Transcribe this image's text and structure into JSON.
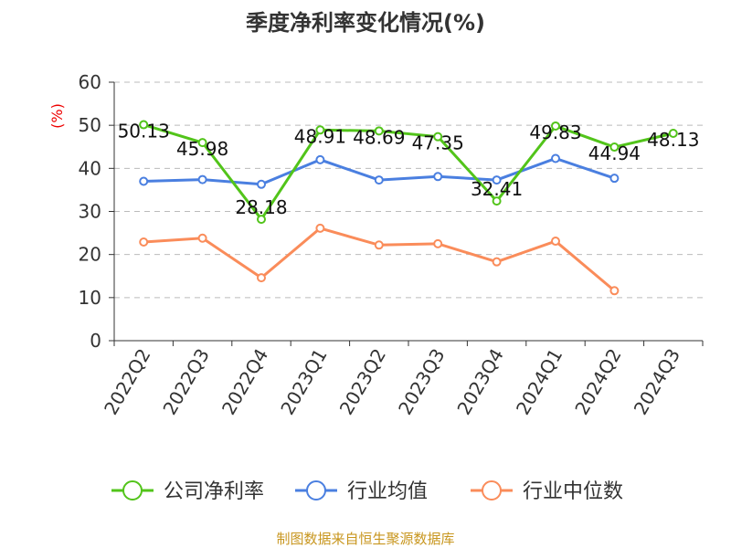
{
  "chart_data": {
    "type": "line",
    "title": "季度净利率变化情况(%)",
    "ylabel": "(%)",
    "xlabel": "",
    "ylim": [
      0,
      60
    ],
    "yticks": [
      0,
      10,
      20,
      30,
      40,
      50,
      60
    ],
    "grid": true,
    "legend": "bottom",
    "categories": [
      "2022Q2",
      "2022Q3",
      "2022Q4",
      "2023Q1",
      "2023Q2",
      "2023Q3",
      "2023Q4",
      "2024Q1",
      "2024Q2",
      "2024Q3"
    ],
    "series": [
      {
        "name": "公司净利率",
        "color": "#52c41a",
        "show_labels": true,
        "values": [
          50.13,
          45.98,
          28.18,
          48.91,
          48.69,
          47.35,
          32.41,
          49.83,
          44.94,
          48.13
        ]
      },
      {
        "name": "行业均值",
        "color": "#4a7fe0",
        "show_labels": false,
        "values": [
          37.0,
          37.4,
          36.3,
          42.0,
          37.3,
          38.1,
          37.3,
          42.3,
          37.7,
          null
        ]
      },
      {
        "name": "行业中位数",
        "color": "#fa8c5a",
        "show_labels": false,
        "values": [
          22.9,
          23.8,
          14.6,
          26.1,
          22.2,
          22.5,
          18.3,
          23.1,
          11.6,
          null
        ]
      }
    ]
  },
  "source": "制图数据来自恒生聚源数据库"
}
